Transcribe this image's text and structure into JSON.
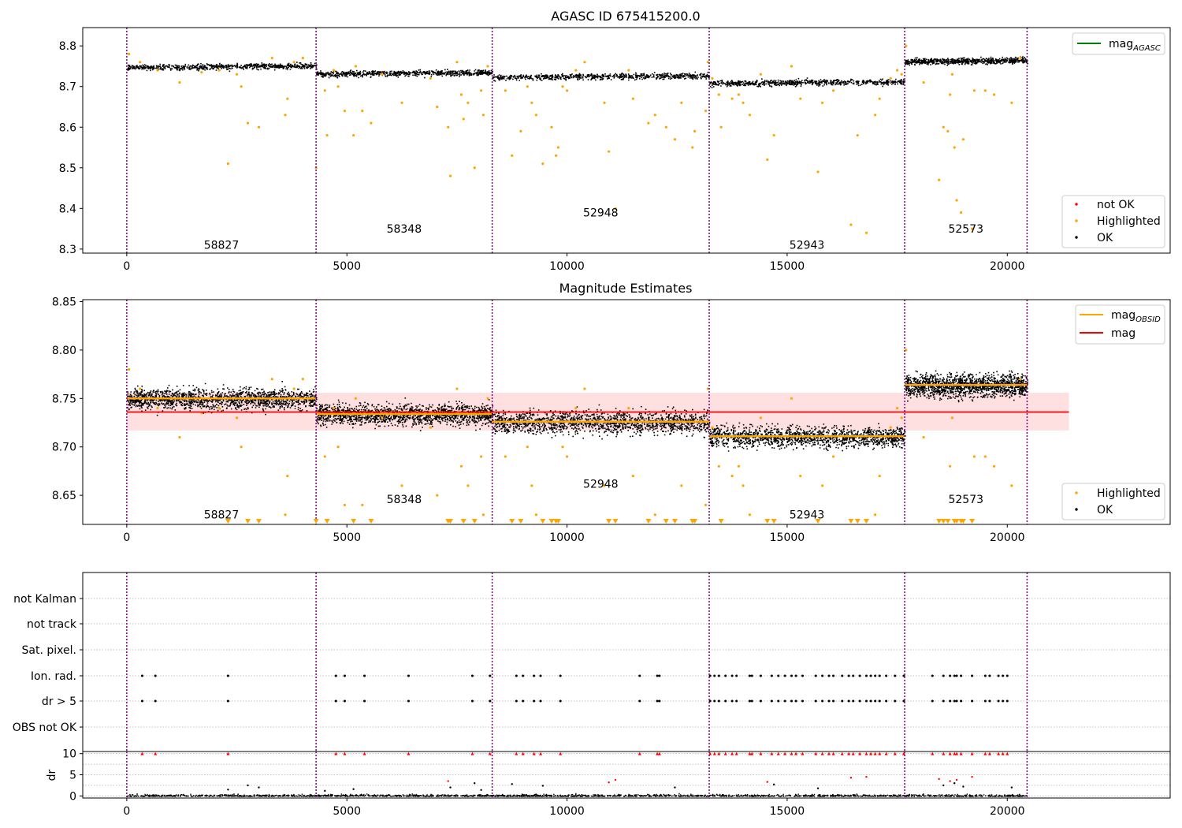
{
  "chart_data": [
    {
      "type": "scatter",
      "title": "AGASC ID 675415200.0",
      "xlabel": "",
      "ylabel": "",
      "xlim": [
        -1000,
        23700
      ],
      "ylim": [
        8.29,
        8.845
      ],
      "xticks": [
        0,
        5000,
        10000,
        15000,
        20000
      ],
      "yticks": [
        8.3,
        8.4,
        8.5,
        8.6,
        8.7,
        8.8
      ],
      "ytick_labels": [
        "8.3",
        "8.4",
        "8.5",
        "8.6",
        "8.7",
        "8.8"
      ],
      "segment_boundaries": [
        0,
        4300,
        8300,
        13230,
        17670,
        20450
      ],
      "segments": [
        {
          "obsid": "58827",
          "x_start": 0,
          "x_end": 4300,
          "mag": 8.75,
          "label_y": 8.31
        },
        {
          "obsid": "58348",
          "x_start": 4300,
          "x_end": 8300,
          "mag": 8.734,
          "label_y": 8.35
        },
        {
          "obsid": "52948",
          "x_start": 8300,
          "x_end": 13230,
          "mag": 8.726,
          "label_y": 8.39
        },
        {
          "obsid": "52943",
          "x_start": 13230,
          "x_end": 17670,
          "mag": 8.711,
          "label_y": 8.31
        },
        {
          "obsid": "52573",
          "x_start": 17670,
          "x_end": 20450,
          "mag": 8.764,
          "label_y": 8.35
        }
      ],
      "highlighted_points": [
        [
          50,
          8.78
        ],
        [
          300,
          8.76
        ],
        [
          700,
          8.74
        ],
        [
          1200,
          8.71
        ],
        [
          1700,
          8.735
        ],
        [
          2100,
          8.74
        ],
        [
          2300,
          8.51
        ],
        [
          2500,
          8.73
        ],
        [
          2600,
          8.7
        ],
        [
          2750,
          8.61
        ],
        [
          3000,
          8.6
        ],
        [
          3300,
          8.77
        ],
        [
          3600,
          8.63
        ],
        [
          3650,
          8.67
        ],
        [
          3800,
          8.76
        ],
        [
          4000,
          8.77
        ],
        [
          4300,
          8.5
        ],
        [
          4500,
          8.69
        ],
        [
          4550,
          8.58
        ],
        [
          4700,
          8.74
        ],
        [
          4800,
          8.7
        ],
        [
          4950,
          8.64
        ],
        [
          5150,
          8.58
        ],
        [
          5200,
          8.75
        ],
        [
          5350,
          8.64
        ],
        [
          5550,
          8.61
        ],
        [
          5800,
          8.73
        ],
        [
          6250,
          8.66
        ],
        [
          6900,
          8.72
        ],
        [
          7050,
          8.65
        ],
        [
          7300,
          8.6
        ],
        [
          7350,
          8.48
        ],
        [
          7500,
          8.76
        ],
        [
          7600,
          8.68
        ],
        [
          7650,
          8.62
        ],
        [
          7750,
          8.66
        ],
        [
          7900,
          8.5
        ],
        [
          8050,
          8.69
        ],
        [
          8100,
          8.63
        ],
        [
          8200,
          8.75
        ],
        [
          8600,
          8.69
        ],
        [
          8750,
          8.53
        ],
        [
          8950,
          8.59
        ],
        [
          9100,
          8.7
        ],
        [
          9200,
          8.66
        ],
        [
          9300,
          8.63
        ],
        [
          9450,
          8.51
        ],
        [
          9650,
          8.6
        ],
        [
          9750,
          8.53
        ],
        [
          9800,
          8.55
        ],
        [
          9900,
          8.7
        ],
        [
          10000,
          8.69
        ],
        [
          10200,
          8.74
        ],
        [
          10400,
          8.76
        ],
        [
          10850,
          8.66
        ],
        [
          10950,
          8.54
        ],
        [
          11100,
          8.4
        ],
        [
          11400,
          8.74
        ],
        [
          11500,
          8.67
        ],
        [
          11850,
          8.61
        ],
        [
          12000,
          8.63
        ],
        [
          12250,
          8.6
        ],
        [
          12450,
          8.57
        ],
        [
          12600,
          8.66
        ],
        [
          12850,
          8.55
        ],
        [
          12900,
          8.59
        ],
        [
          13150,
          8.64
        ],
        [
          13200,
          8.76
        ],
        [
          13300,
          8.72
        ],
        [
          13450,
          8.68
        ],
        [
          13500,
          8.6
        ],
        [
          13750,
          8.67
        ],
        [
          13900,
          8.68
        ],
        [
          14000,
          8.66
        ],
        [
          14150,
          8.63
        ],
        [
          14400,
          8.73
        ],
        [
          14550,
          8.52
        ],
        [
          14700,
          8.58
        ],
        [
          15100,
          8.75
        ],
        [
          15300,
          8.67
        ],
        [
          15700,
          8.49
        ],
        [
          15800,
          8.66
        ],
        [
          16050,
          8.69
        ],
        [
          16450,
          8.36
        ],
        [
          16600,
          8.58
        ],
        [
          16800,
          8.34
        ],
        [
          17000,
          8.63
        ],
        [
          17100,
          8.67
        ],
        [
          17350,
          8.72
        ],
        [
          17500,
          8.74
        ],
        [
          17600,
          8.73
        ],
        [
          17700,
          8.8
        ],
        [
          18100,
          8.71
        ],
        [
          18450,
          8.47
        ],
        [
          18550,
          8.6
        ],
        [
          18650,
          8.59
        ],
        [
          18700,
          8.68
        ],
        [
          18750,
          8.73
        ],
        [
          18800,
          8.55
        ],
        [
          18850,
          8.42
        ],
        [
          18950,
          8.39
        ],
        [
          19000,
          8.57
        ],
        [
          19200,
          8.35
        ],
        [
          19250,
          8.69
        ],
        [
          19500,
          8.69
        ],
        [
          19700,
          8.68
        ],
        [
          20100,
          8.66
        ],
        [
          20300,
          8.77
        ]
      ],
      "legend_top": [
        {
          "label": "mag",
          "subscript": "AGASC",
          "color": "#008000",
          "kind": "line"
        }
      ],
      "legend_bottom": [
        {
          "label": "not OK",
          "color": "#ff0000",
          "kind": "dot"
        },
        {
          "label": "Highlighted",
          "color": "#ffa500",
          "kind": "dot"
        },
        {
          "label": "OK",
          "color": "#000000",
          "kind": "dot"
        }
      ]
    },
    {
      "type": "scatter",
      "title": "Magnitude Estimates",
      "xlabel": "",
      "ylabel": "",
      "xlim": [
        -1000,
        23700
      ],
      "ylim": [
        8.62,
        8.852
      ],
      "xticks": [
        0,
        5000,
        10000,
        15000,
        20000
      ],
      "yticks": [
        8.65,
        8.7,
        8.75,
        8.8,
        8.85
      ],
      "ytick_labels": [
        "8.65",
        "8.70",
        "8.75",
        "8.80",
        "8.85"
      ],
      "mag": 8.736,
      "mag_band": [
        8.717,
        8.756
      ],
      "mag_line_x": [
        0,
        21400
      ],
      "segments": [
        {
          "obsid": "58827",
          "x_start": 0,
          "x_end": 4300,
          "mag": 8.75,
          "spread": 0.009,
          "label_y": 8.63
        },
        {
          "obsid": "58348",
          "x_start": 4300,
          "x_end": 8300,
          "mag": 8.734,
          "spread": 0.009,
          "label_y": 8.646
        },
        {
          "obsid": "52948",
          "x_start": 8300,
          "x_end": 13230,
          "mag": 8.726,
          "spread": 0.01,
          "label_y": 8.662
        },
        {
          "obsid": "52943",
          "x_start": 13230,
          "x_end": 17670,
          "mag": 8.711,
          "spread": 0.009,
          "label_y": 8.63
        },
        {
          "obsid": "52573",
          "x_start": 17670,
          "x_end": 20450,
          "mag": 8.764,
          "spread": 0.01,
          "label_y": 8.646
        }
      ],
      "legend_top": [
        {
          "label": "mag",
          "subscript": "OBSID",
          "color": "#ffa500",
          "kind": "line"
        },
        {
          "label": "mag",
          "subscript": "",
          "color": "#ff0000",
          "kind": "line"
        }
      ],
      "legend_bottom": [
        {
          "label": "Highlighted",
          "color": "#ffa500",
          "kind": "dot"
        },
        {
          "label": "OK",
          "color": "#000000",
          "kind": "dot"
        }
      ]
    },
    {
      "type": "scatter",
      "title": "",
      "xlabel": "",
      "ylabel": "",
      "xlim": [
        -1000,
        23700
      ],
      "categories": [
        "OBS not OK",
        "dr > 5",
        "Ion. rad.",
        "Sat. pixel.",
        "not track",
        "not Kalman"
      ],
      "flag_x": [
        350,
        650,
        2300,
        4750,
        4950,
        5400,
        6400,
        7850,
        8250,
        8850,
        9000,
        9250,
        9400,
        9850,
        11650,
        12050,
        12100,
        13250,
        13350,
        13450,
        13600,
        13750,
        13850,
        14150,
        14200,
        14400,
        14650,
        14800,
        14950,
        15100,
        15200,
        15350,
        15650,
        15800,
        15950,
        16050,
        16250,
        16400,
        16500,
        16650,
        16800,
        16900,
        17000,
        17100,
        17250,
        17450,
        17650,
        18300,
        18550,
        18700,
        18800,
        18850,
        18950,
        19200,
        19500,
        19600,
        19800,
        19900,
        20000
      ]
    },
    {
      "type": "scatter",
      "title": "",
      "xlabel": "",
      "ylabel": "dr",
      "xlim": [
        -1000,
        23700
      ],
      "ylim": [
        -0.5,
        10.5
      ],
      "xticks": [
        0,
        5000,
        10000,
        15000,
        20000
      ],
      "yticks": [
        0,
        5,
        10
      ],
      "clipped_value": 10,
      "outliers": [
        [
          2300,
          1.5
        ],
        [
          2750,
          2.5
        ],
        [
          3000,
          2.0
        ],
        [
          4500,
          1.2
        ],
        [
          5150,
          1.6
        ],
        [
          7300,
          3.5
        ],
        [
          7350,
          2.0
        ],
        [
          7900,
          3.0
        ],
        [
          8050,
          1.4
        ],
        [
          8750,
          2.8
        ],
        [
          9450,
          2.4
        ],
        [
          10950,
          3.2
        ],
        [
          11100,
          3.8
        ],
        [
          12450,
          2.0
        ],
        [
          14550,
          3.3
        ],
        [
          14700,
          2.7
        ],
        [
          15700,
          1.8
        ],
        [
          16450,
          4.3
        ],
        [
          16800,
          4.5
        ],
        [
          18450,
          4.0
        ],
        [
          18550,
          2.5
        ],
        [
          18700,
          3.5
        ],
        [
          18800,
          3.0
        ],
        [
          18850,
          3.8
        ],
        [
          19000,
          2.2
        ],
        [
          19200,
          4.5
        ],
        [
          20100,
          2.0
        ]
      ]
    }
  ]
}
